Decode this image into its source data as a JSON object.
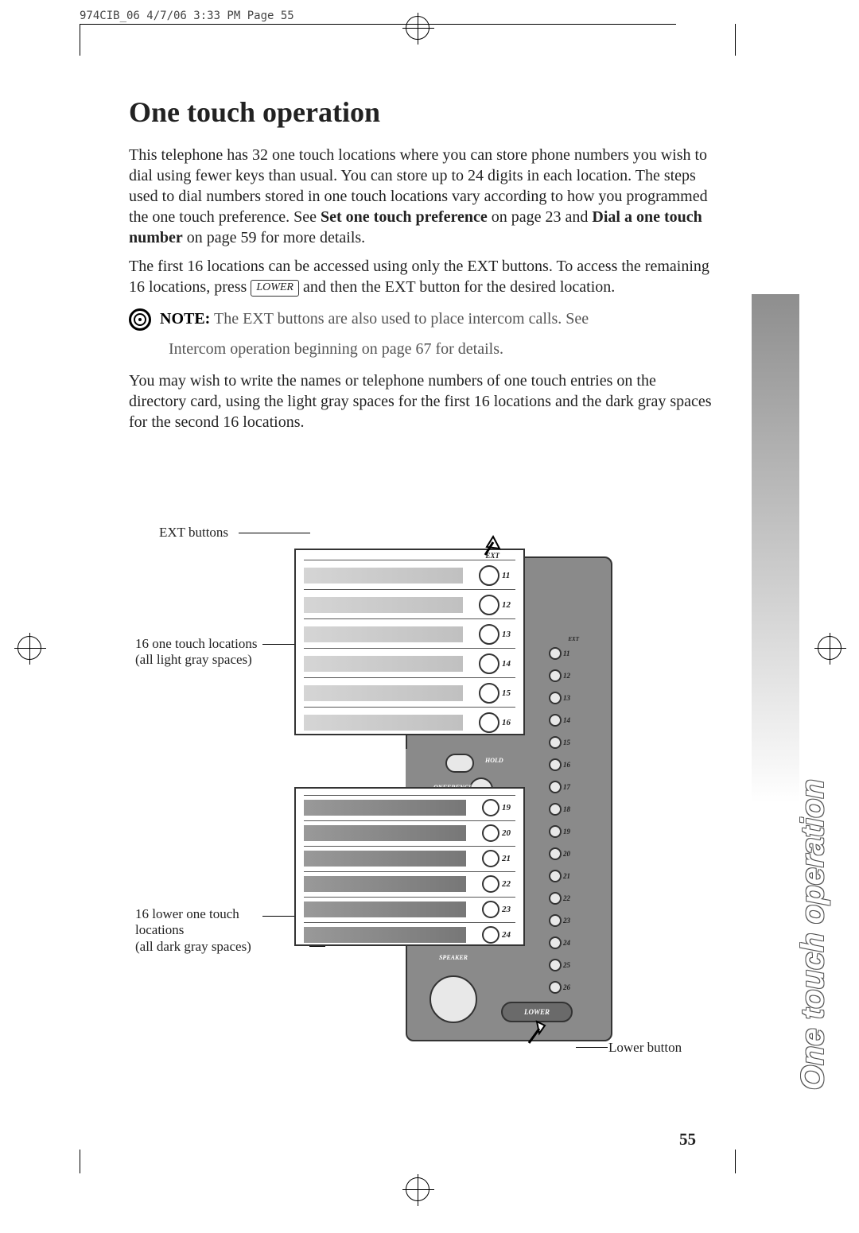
{
  "meta": {
    "header": "974CIB_06  4/7/06  3:33 PM  Page 55",
    "page_number": "55"
  },
  "title": "One touch operation",
  "side_tab": "One touch operation",
  "para1": "This telephone has 32 one touch locations where you can store phone numbers you wish to dial using fewer keys than usual.  You can store up to 24 digits in each location.  The steps used to dial numbers stored in one touch locations vary according to how you programmed the one touch preference.  See ",
  "para1_bold1": "Set one touch preference",
  "para1_mid": " on page 23 and ",
  "para1_bold2": "Dial a one touch number",
  "para1_end": " on page 59 for more details.",
  "para2_a": "The first 16 locations can be accessed using only the EXT buttons.  To access the remaining 16 locations,  press ",
  "para2_key": "LOWER",
  "para2_b": " and then the EXT button for the desired location.",
  "note_label": "NOTE:",
  "note_text1": " The EXT buttons are also used to place intercom calls.  See",
  "note_text2": "Intercom operation beginning on page 67 for details.",
  "para3": "You may wish to write the names or telephone numbers of one touch entries on the directory card,  using the light gray spaces for the first 16 locations and the dark gray spaces for the second 16 locations.",
  "figure": {
    "label_ext": "EXT buttons",
    "label_16a_line1": "16 one touch locations",
    "label_16a_line2": "(all light gray spaces)",
    "label_16b_line1": "16 lower one touch",
    "label_16b_line2": "locations",
    "label_16b_line3": "(all dark gray spaces)",
    "label_lower": "Lower button",
    "ext_top": "EXT",
    "hold": "HOLD",
    "conference": "ONFERENCE",
    "speaker": "SPEAKER",
    "lower": "LOWER",
    "mag_top_nums": [
      "11",
      "12",
      "13",
      "14",
      "15",
      "16"
    ],
    "mag_bot_nums": [
      "19",
      "20",
      "21",
      "22",
      "23",
      "24"
    ],
    "small_nums": [
      "11",
      "12",
      "13",
      "14",
      "15",
      "16",
      "17",
      "18",
      "19",
      "20",
      "21",
      "22",
      "23",
      "24",
      "25",
      "26"
    ]
  },
  "colors": {
    "body_gray": "#8a8a8a",
    "light_gray": "#d5d5d5",
    "text": "#222222"
  }
}
